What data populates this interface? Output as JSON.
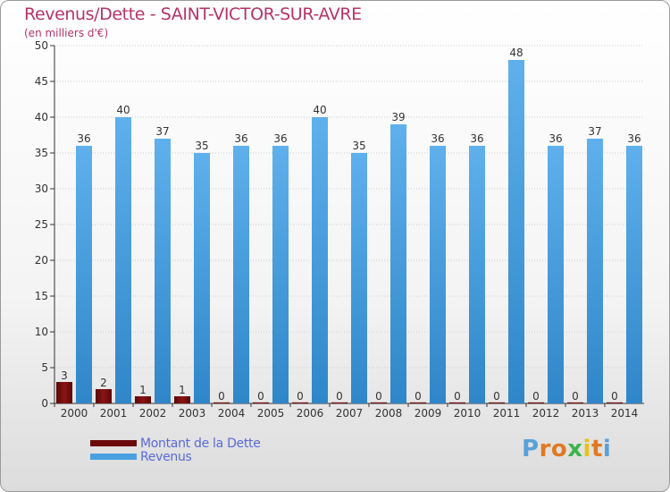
{
  "header": {
    "title": "Revenus/Dette - SAINT-VICTOR-SUR-AVRE",
    "subtitle": "(en milliers d'€)"
  },
  "legend": {
    "items": [
      {
        "label": "Montant de la Dette",
        "color": "#6b0a0a"
      },
      {
        "label": "Revenus",
        "color": "#4aa0e0"
      }
    ]
  },
  "logo": {
    "text": "Proxiti",
    "letter_colors": [
      "#5aa0d8",
      "#e07a20",
      "#e07a20",
      "#3cb44a",
      "#e8c21a",
      "#e07a20",
      "#5aa0d8"
    ]
  },
  "colors": {
    "debt": "#6b0a0a",
    "revenue": "#4aa0e0",
    "axis_text": "#333333",
    "grid": "#cccccc"
  },
  "chart_data": {
    "type": "bar",
    "title": "Revenus/Dette - SAINT-VICTOR-SUR-AVRE",
    "ylabel": "(en milliers d'€)",
    "xlabel": "",
    "ylim": [
      0,
      50
    ],
    "yticks": [
      0,
      5,
      10,
      15,
      20,
      25,
      30,
      35,
      40,
      45,
      50
    ],
    "grid": true,
    "legend_position": "bottom-left",
    "categories": [
      "2000",
      "2001",
      "2002",
      "2003",
      "2004",
      "2005",
      "2006",
      "2007",
      "2008",
      "2009",
      "2010",
      "2011",
      "2012",
      "2013",
      "2014"
    ],
    "series": [
      {
        "name": "Montant de la Dette",
        "values": [
          3,
          2,
          1,
          1,
          0,
          0,
          0,
          0,
          0,
          0,
          0,
          0,
          0,
          0,
          0
        ]
      },
      {
        "name": "Revenus",
        "values": [
          36,
          40,
          37,
          35,
          36,
          36,
          40,
          35,
          39,
          36,
          36,
          48,
          36,
          37,
          36
        ]
      }
    ]
  }
}
